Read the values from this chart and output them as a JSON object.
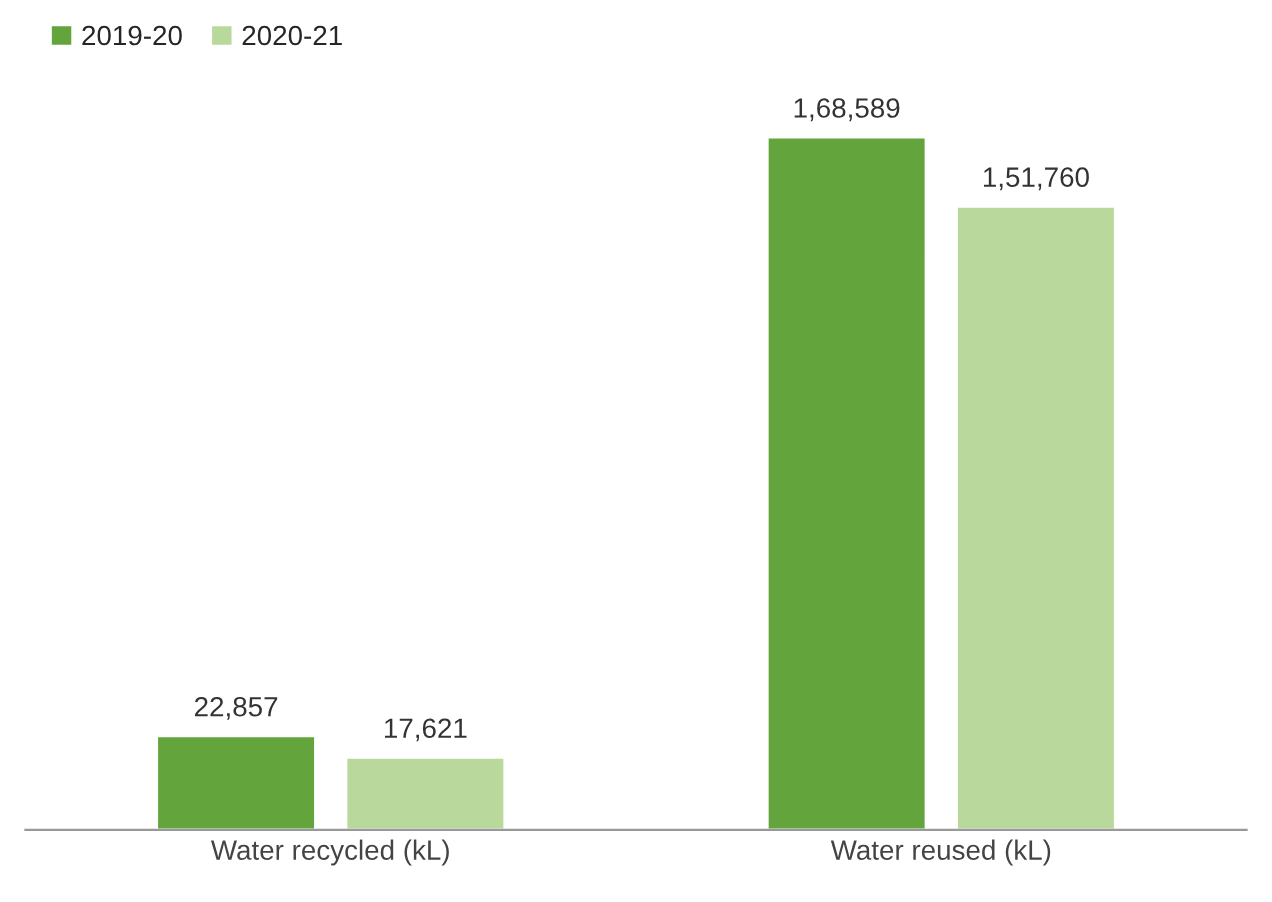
{
  "chart_data": {
    "type": "bar",
    "categories": [
      "Water recycled (kL)",
      "Water reused (kL)"
    ],
    "series": [
      {
        "name": "2019-20",
        "color": "#63a53c",
        "values": [
          22857,
          168589
        ],
        "value_labels": [
          "22,857",
          "1,68,589"
        ]
      },
      {
        "name": "2020-21",
        "color": "#b9d99c",
        "values": [
          17621,
          151760
        ],
        "value_labels": [
          "17,621",
          "1,51,760"
        ]
      }
    ],
    "legend": "top left",
    "grid": false
  }
}
